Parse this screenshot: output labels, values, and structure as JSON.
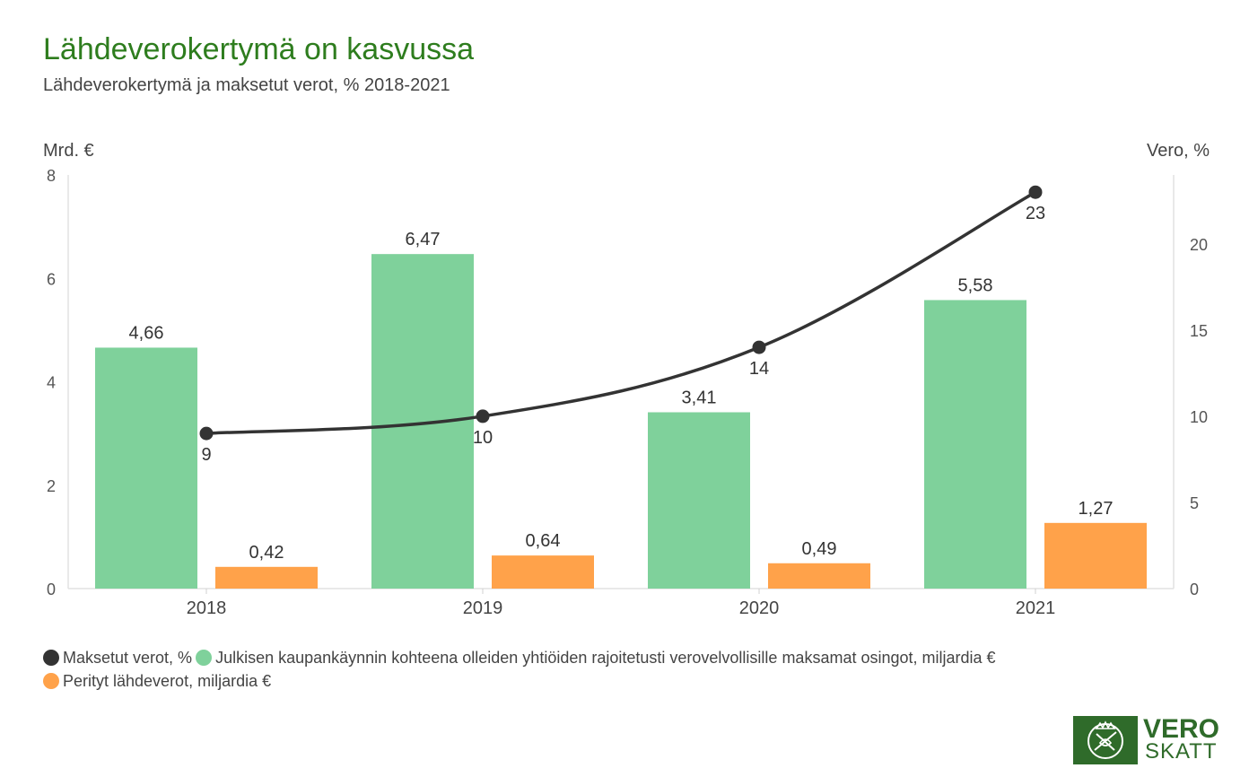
{
  "title": "Lähdeverokertymä on kasvussa",
  "subtitle": "Lähdeverokertymä ja maksetut verot, % 2018-2021",
  "colors": {
    "title": "#2e7d1e",
    "dividends": "#7fd19b",
    "withholding": "#ffa24a",
    "tax_line": "#333333",
    "logo": "#2f6b2a"
  },
  "legend": {
    "items": [
      {
        "label": "Maksetut verot, %",
        "color": "#333333"
      },
      {
        "label": "Julkisen kaupankäynnin kohteena olleiden yhtiöiden rajoitetusti verovelvollisille maksamat osingot, miljardia €",
        "color": "#7fd19b"
      },
      {
        "label": "Perityt lähdeverot, miljardia €",
        "color": "#ffa24a"
      }
    ]
  },
  "logo": {
    "icon": "lion-emblem-icon",
    "line1": "VERO",
    "line2": "SKATT"
  },
  "chart_data": {
    "type": "bar",
    "categories": [
      "2018",
      "2019",
      "2020",
      "2021"
    ],
    "y_left": {
      "label": "Mrd. €",
      "range": [
        0,
        8
      ],
      "ticks": [
        "0",
        "2",
        "4",
        "6",
        "8"
      ]
    },
    "y_right": {
      "label": "Vero, %",
      "range": [
        0,
        24
      ],
      "ticks": [
        "0",
        "5",
        "10",
        "15",
        "20"
      ]
    },
    "series": [
      {
        "name": "Julkisen kaupankäynnin kohteena olleiden yhtiöiden rajoitetusti verovelvollisille maksamat osingot, miljardia €",
        "type": "bar",
        "axis": "left",
        "values": [
          4.66,
          6.47,
          3.41,
          5.58
        ],
        "labels": [
          "4,66",
          "6,47",
          "3,41",
          "5,58"
        ]
      },
      {
        "name": "Perityt lähdeverot, miljardia €",
        "type": "bar",
        "axis": "left",
        "values": [
          0.42,
          0.64,
          0.49,
          1.27
        ],
        "labels": [
          "0,42",
          "0,64",
          "0,49",
          "1,27"
        ]
      },
      {
        "name": "Maksetut verot, %",
        "type": "line",
        "axis": "right",
        "values": [
          9,
          10,
          14,
          23
        ],
        "labels": [
          "9",
          "10",
          "14",
          "23"
        ]
      }
    ],
    "grid": false,
    "legend_position": "bottom-left"
  }
}
